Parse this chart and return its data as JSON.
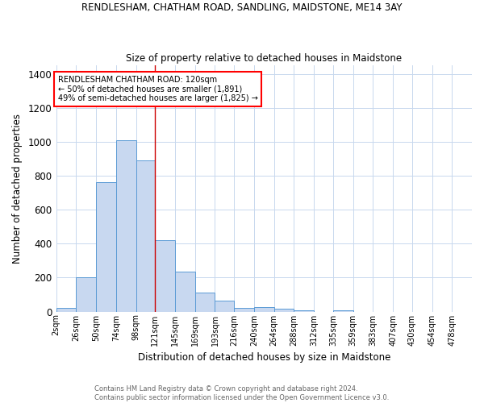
{
  "title": "RENDLESHAM, CHATHAM ROAD, SANDLING, MAIDSTONE, ME14 3AY",
  "subtitle": "Size of property relative to detached houses in Maidstone",
  "xlabel": "Distribution of detached houses by size in Maidstone",
  "ylabel": "Number of detached properties",
  "footnote1": "Contains HM Land Registry data © Crown copyright and database right 2024.",
  "footnote2": "Contains public sector information licensed under the Open Government Licence v3.0.",
  "annotation_line1": "RENDLESHAM CHATHAM ROAD: 120sqm",
  "annotation_line2": "← 50% of detached houses are smaller (1,891)",
  "annotation_line3": "49% of semi-detached houses are larger (1,825) →",
  "bar_left_edges": [
    2,
    26,
    50,
    74,
    98,
    121,
    145,
    169,
    193,
    216,
    240,
    264,
    288,
    312,
    335,
    359,
    383,
    407,
    430,
    454
  ],
  "bar_heights": [
    20,
    200,
    760,
    1010,
    890,
    420,
    235,
    110,
    65,
    20,
    25,
    15,
    8,
    0,
    10,
    0,
    0,
    0,
    0,
    0
  ],
  "bar_widths": [
    24,
    24,
    24,
    24,
    23,
    24,
    24,
    24,
    23,
    24,
    24,
    24,
    24,
    23,
    24,
    24,
    24,
    23,
    24,
    24
  ],
  "tick_labels": [
    "2sqm",
    "26sqm",
    "50sqm",
    "74sqm",
    "98sqm",
    "121sqm",
    "145sqm",
    "169sqm",
    "193sqm",
    "216sqm",
    "240sqm",
    "264sqm",
    "288sqm",
    "312sqm",
    "335sqm",
    "359sqm",
    "383sqm",
    "407sqm",
    "430sqm",
    "454sqm",
    "478sqm"
  ],
  "tick_positions": [
    2,
    26,
    50,
    74,
    98,
    121,
    145,
    169,
    193,
    216,
    240,
    264,
    288,
    312,
    335,
    359,
    383,
    407,
    430,
    454,
    478
  ],
  "bar_color": "#c8d8f0",
  "bar_edge_color": "#5b9bd5",
  "vline_x": 121,
  "vline_color": "#cc0000",
  "ylim": [
    0,
    1450
  ],
  "xlim": [
    2,
    502
  ],
  "background_color": "#ffffff",
  "grid_color": "#c8d8ee"
}
